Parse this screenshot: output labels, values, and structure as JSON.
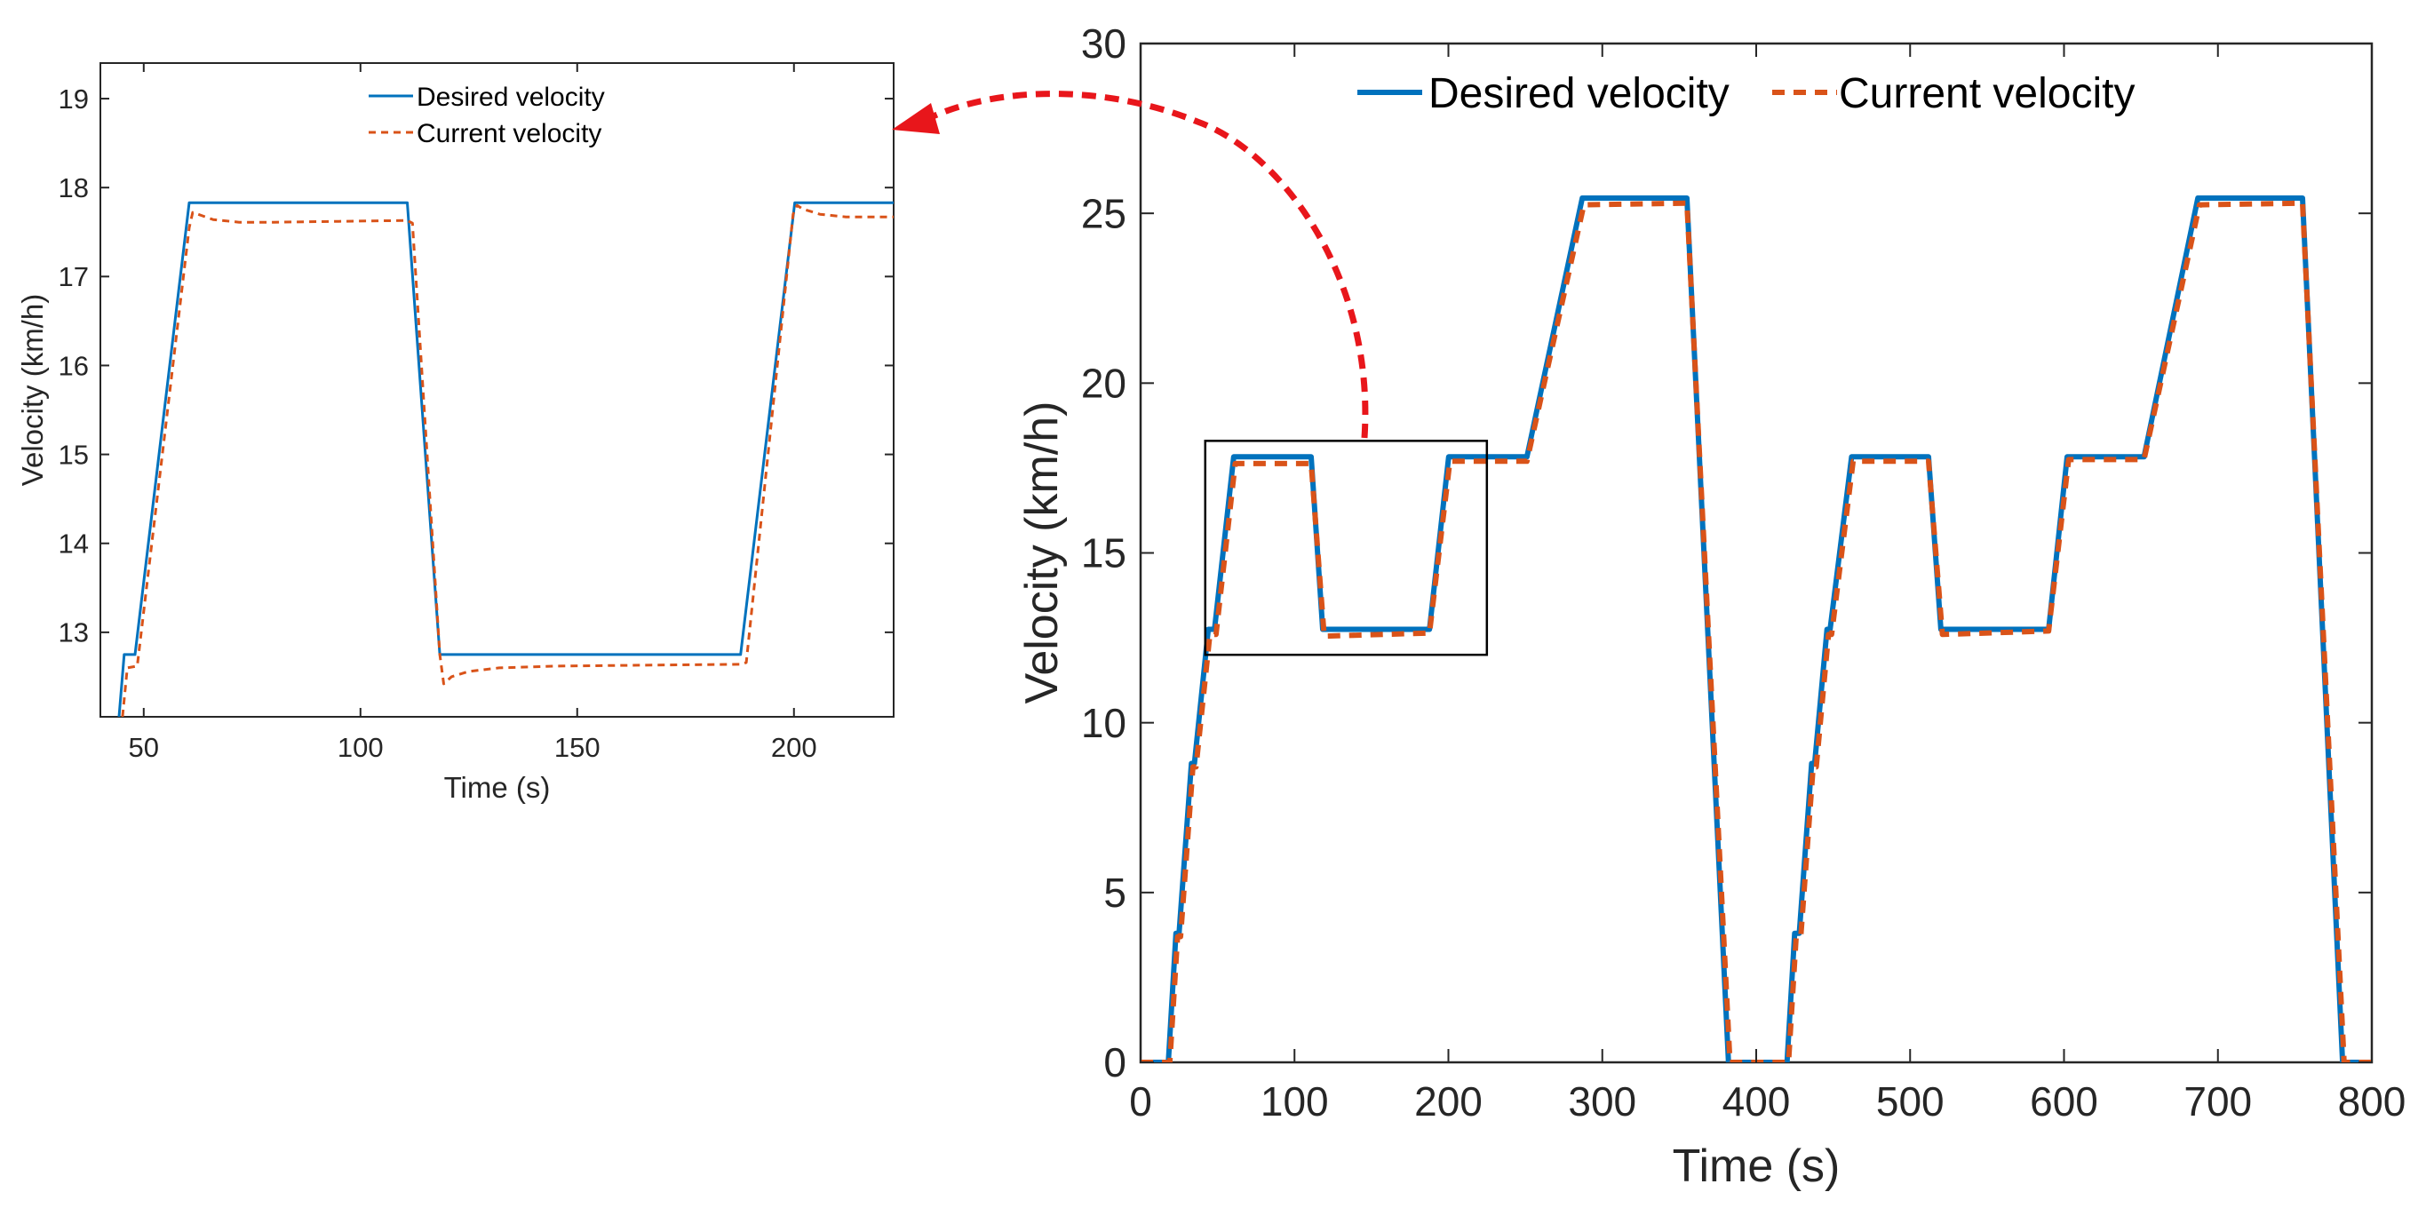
{
  "colors": {
    "desired": "#0072BD",
    "current": "#D95319",
    "arrow": "#E8161B",
    "axis": "#262626"
  },
  "chart_data": [
    {
      "id": "zoom",
      "type": "line",
      "title": "",
      "xlabel": "Time (s)",
      "ylabel": "Velocity (km/h)",
      "xlim": [
        40,
        223
      ],
      "ylim": [
        12.05,
        19.4
      ],
      "xticks": [
        50,
        100,
        150,
        200
      ],
      "yticks": [
        13,
        14,
        15,
        16,
        17,
        18,
        19
      ],
      "legend_position": "top-center",
      "series": [
        {
          "name": "Desired velocity",
          "style": "solid",
          "x": [
            44.3,
            45.5,
            48,
            60.5,
            110.8,
            118.3,
            187.7,
            200.2,
            223
          ],
          "y": [
            12.05,
            12.75,
            12.75,
            17.83,
            17.83,
            12.75,
            12.75,
            17.83,
            17.83
          ]
        },
        {
          "name": "Current velocity",
          "style": "dashed",
          "x": [
            45.1,
            46.2,
            48.5,
            60.5,
            61.3,
            62.5,
            66,
            72,
            80,
            95,
            110.8,
            112,
            118.3,
            119.2,
            121,
            125,
            132,
            145,
            165,
            187.7,
            189,
            199.8,
            200.7,
            202,
            206,
            212,
            223
          ],
          "y": [
            12.05,
            12.6,
            12.62,
            17.55,
            17.72,
            17.7,
            17.64,
            17.61,
            17.61,
            17.62,
            17.63,
            17.6,
            12.75,
            12.42,
            12.5,
            12.56,
            12.6,
            12.62,
            12.63,
            12.64,
            12.66,
            17.7,
            17.8,
            17.76,
            17.7,
            17.67,
            17.67
          ]
        }
      ]
    },
    {
      "id": "main",
      "type": "line",
      "title": "",
      "xlabel": "Time (s)",
      "ylabel": "Velocity (km/h)",
      "xlim": [
        0,
        800
      ],
      "ylim": [
        0,
        30
      ],
      "xticks": [
        0,
        100,
        200,
        300,
        400,
        500,
        600,
        700,
        800
      ],
      "yticks": [
        0,
        5,
        10,
        15,
        20,
        25,
        30
      ],
      "legend_position": "top-center",
      "zoom_box": {
        "x": [
          42,
          225
        ],
        "y": [
          12,
          18.3
        ]
      },
      "series": [
        {
          "name": "Desired velocity",
          "style": "solid",
          "x": [
            0,
            18,
            23,
            25,
            33,
            35,
            44,
            48,
            60.5,
            110.8,
            118.3,
            187.7,
            200.2,
            251,
            287,
            355,
            382,
            420,
            425,
            428,
            436,
            438,
            446,
            448,
            462,
            512,
            520,
            590,
            602,
            652,
            687,
            755,
            781,
            800
          ],
          "y": [
            0,
            0,
            3.8,
            3.8,
            8.8,
            8.8,
            12.75,
            12.75,
            17.83,
            17.83,
            12.75,
            12.75,
            17.83,
            17.83,
            25.45,
            25.45,
            0,
            0,
            3.8,
            3.8,
            8.8,
            8.8,
            12.75,
            12.75,
            17.83,
            17.83,
            12.75,
            12.75,
            17.83,
            17.83,
            25.45,
            25.45,
            0,
            0
          ]
        },
        {
          "name": "Current velocity",
          "style": "dashed",
          "x": [
            0,
            19,
            24,
            26,
            34,
            36,
            45,
            49,
            61.5,
            110.8,
            119.3,
            187.7,
            201,
            251,
            288,
            355,
            383,
            421,
            426,
            429,
            437,
            439,
            447,
            449,
            463,
            512,
            521,
            590,
            603,
            652,
            688,
            755,
            782,
            800
          ],
          "y": [
            0,
            0,
            3.7,
            3.7,
            8.7,
            8.7,
            12.6,
            12.6,
            17.63,
            17.63,
            12.55,
            12.64,
            17.7,
            17.7,
            25.25,
            25.3,
            0,
            0,
            3.7,
            3.7,
            8.7,
            8.7,
            12.6,
            12.6,
            17.7,
            17.7,
            12.6,
            12.7,
            17.75,
            17.75,
            25.25,
            25.3,
            0,
            0
          ]
        }
      ]
    }
  ]
}
